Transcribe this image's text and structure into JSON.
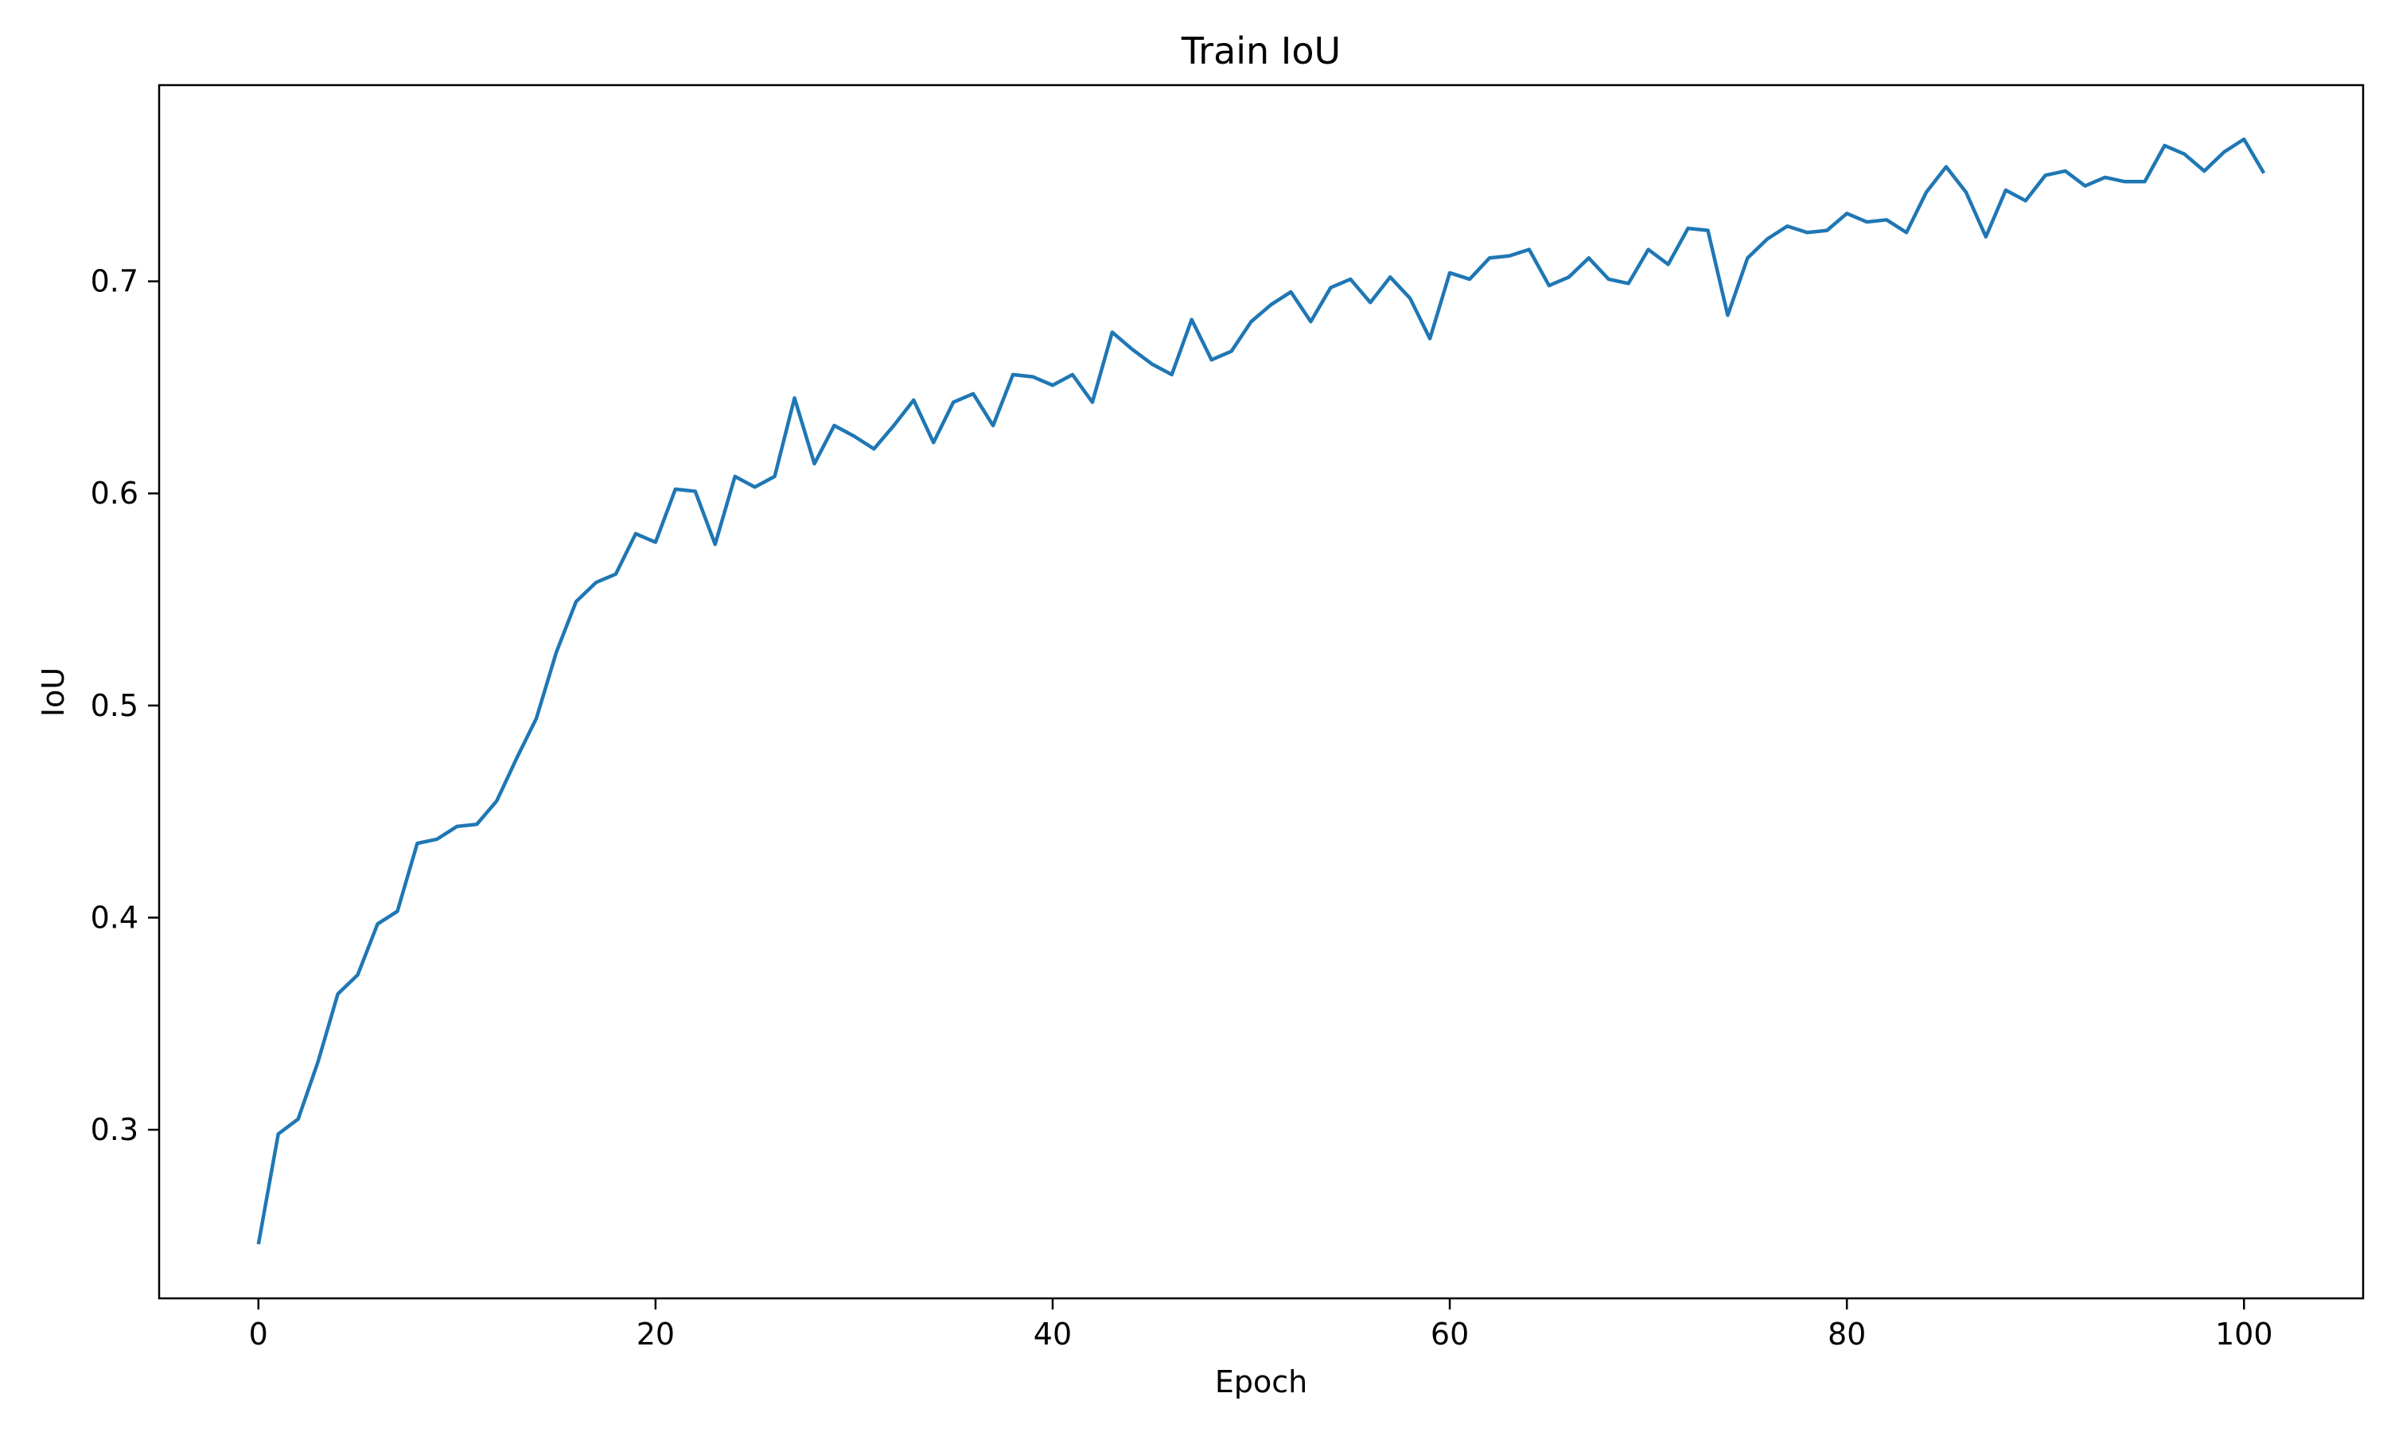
{
  "chart_data": {
    "type": "line",
    "title": "Train IoU",
    "xlabel": "Epoch",
    "ylabel": "IoU",
    "xlim": [
      -5,
      106
    ],
    "ylim": [
      0.2205,
      0.7925
    ],
    "xticks": [
      0,
      20,
      40,
      60,
      80,
      100
    ],
    "yticks": [
      0.3,
      0.4,
      0.5,
      0.6,
      0.7
    ],
    "xtick_labels": [
      "0",
      "20",
      "40",
      "60",
      "80",
      "100"
    ],
    "ytick_labels": [
      "0.3",
      "0.4",
      "0.5",
      "0.6",
      "0.7"
    ],
    "grid": false,
    "legend": "none",
    "colors": {
      "series": "#1f77b4",
      "axes": "#000000",
      "background": "#ffffff"
    },
    "series": [
      {
        "x": [
          0,
          1,
          2,
          3,
          4,
          5,
          6,
          7,
          8,
          9,
          10,
          11,
          12,
          13,
          14,
          15,
          16,
          17,
          18,
          19,
          20,
          21,
          22,
          23,
          24,
          25,
          26,
          27,
          28,
          29,
          30,
          31,
          32,
          33,
          34,
          35,
          36,
          37,
          38,
          39,
          40,
          41,
          42,
          43,
          44,
          45,
          46,
          47,
          48,
          49,
          50,
          51,
          52,
          53,
          54,
          55,
          56,
          57,
          58,
          59,
          60,
          61,
          62,
          63,
          64,
          65,
          66,
          67,
          68,
          69,
          70,
          71,
          72,
          73,
          74,
          75,
          76,
          77,
          78,
          79,
          80,
          81,
          82,
          83,
          84,
          85,
          86,
          87,
          88,
          89,
          90,
          91,
          92,
          93,
          94,
          95,
          96,
          97,
          98,
          99,
          100,
          101
        ],
        "values": [
          0.246,
          0.298,
          0.305,
          0.332,
          0.364,
          0.373,
          0.397,
          0.403,
          0.435,
          0.437,
          0.443,
          0.444,
          0.455,
          0.475,
          0.494,
          0.525,
          0.549,
          0.558,
          0.562,
          0.581,
          0.577,
          0.602,
          0.601,
          0.576,
          0.608,
          0.603,
          0.608,
          0.645,
          0.614,
          0.632,
          0.627,
          0.621,
          0.632,
          0.644,
          0.624,
          0.643,
          0.647,
          0.632,
          0.656,
          0.655,
          0.651,
          0.656,
          0.643,
          0.676,
          0.668,
          0.661,
          0.656,
          0.682,
          0.663,
          0.667,
          0.681,
          0.689,
          0.695,
          0.681,
          0.697,
          0.701,
          0.69,
          0.702,
          0.692,
          0.673,
          0.704,
          0.701,
          0.711,
          0.712,
          0.715,
          0.698,
          0.702,
          0.711,
          0.701,
          0.699,
          0.715,
          0.708,
          0.725,
          0.724,
          0.684,
          0.711,
          0.72,
          0.726,
          0.723,
          0.724,
          0.732,
          0.728,
          0.729,
          0.723,
          0.742,
          0.754,
          0.742,
          0.721,
          0.743,
          0.738,
          0.75,
          0.752,
          0.745,
          0.749,
          0.747,
          0.747,
          0.764,
          0.76,
          0.752,
          0.761,
          0.767,
          0.751
        ]
      }
    ]
  }
}
